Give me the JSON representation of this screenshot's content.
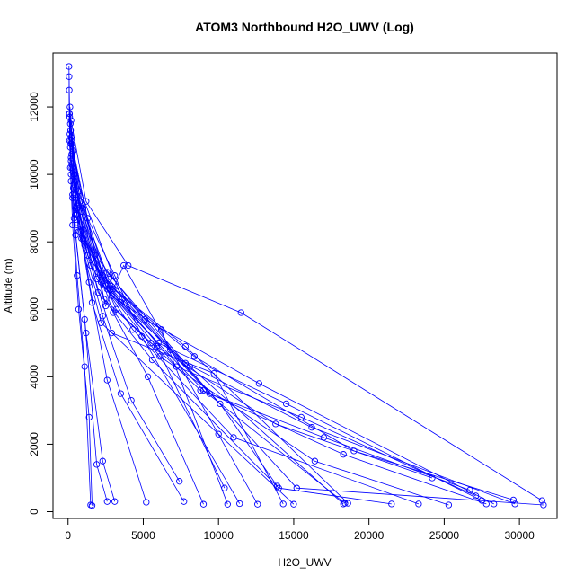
{
  "chart_data": {
    "type": "line",
    "title": "ATOM3 Northbound H2O_UWV (Log)",
    "xlabel": "H2O_UWV",
    "ylabel": "Altitude (m)",
    "xlim": [
      -1000,
      32500
    ],
    "ylim": [
      -200,
      13600
    ],
    "xticks": [
      0,
      5000,
      10000,
      15000,
      20000,
      25000,
      30000
    ],
    "yticks": [
      0,
      2000,
      4000,
      6000,
      8000,
      10000,
      12000
    ],
    "grid": false,
    "legend": "none",
    "marker": "open-circle",
    "series_color": "#0000ff",
    "series": [
      {
        "points": [
          [
            1600,
            180
          ],
          [
            1400,
            2800
          ],
          [
            700,
            6000
          ],
          [
            300,
            8500
          ],
          [
            150,
            10200
          ],
          [
            80,
            11800
          ],
          [
            60,
            13200
          ]
        ]
      },
      {
        "points": [
          [
            1500,
            200
          ],
          [
            1100,
            4300
          ],
          [
            600,
            7000
          ],
          [
            200,
            9800
          ],
          [
            100,
            11000
          ],
          [
            70,
            12900
          ]
        ]
      },
      {
        "points": [
          [
            2600,
            300
          ],
          [
            1900,
            1400
          ],
          [
            1100,
            5700
          ],
          [
            500,
            8200
          ],
          [
            150,
            10800
          ],
          [
            80,
            12500
          ]
        ]
      },
      {
        "points": [
          [
            3100,
            300
          ],
          [
            2300,
            1500
          ],
          [
            1200,
            5300
          ],
          [
            400,
            8700
          ],
          [
            120,
            11200
          ]
        ]
      },
      {
        "points": [
          [
            5200,
            280
          ],
          [
            2600,
            3900
          ],
          [
            1400,
            6800
          ],
          [
            500,
            9400
          ],
          [
            130,
            12000
          ]
        ]
      },
      {
        "points": [
          [
            7400,
            900
          ],
          [
            4200,
            3300
          ],
          [
            2300,
            5800
          ],
          [
            900,
            8100
          ],
          [
            200,
            10500
          ]
        ]
      },
      {
        "points": [
          [
            7700,
            300
          ],
          [
            3500,
            3500
          ],
          [
            1600,
            6200
          ],
          [
            600,
            8800
          ],
          [
            110,
            11700
          ]
        ]
      },
      {
        "points": [
          [
            9000,
            220
          ],
          [
            5300,
            4000
          ],
          [
            3000,
            5900
          ],
          [
            1100,
            8400
          ],
          [
            250,
            10300
          ]
        ]
      },
      {
        "points": [
          [
            10400,
            700
          ],
          [
            5900,
            4900
          ],
          [
            2600,
            6600
          ],
          [
            1000,
            9000
          ],
          [
            200,
            11100
          ]
        ]
      },
      {
        "points": [
          [
            10600,
            220
          ],
          [
            6200,
            5400
          ],
          [
            2900,
            6400
          ],
          [
            700,
            9500
          ],
          [
            100,
            11800
          ]
        ]
      },
      {
        "points": [
          [
            11400,
            240
          ],
          [
            4900,
            5200
          ],
          [
            3100,
            7000
          ],
          [
            1300,
            8700
          ],
          [
            180,
            10900
          ]
        ]
      },
      {
        "points": [
          [
            12600,
            220
          ],
          [
            3700,
            7300
          ],
          [
            2500,
            6100
          ],
          [
            900,
            8900
          ],
          [
            200,
            10000
          ]
        ]
      },
      {
        "points": [
          [
            14300,
            230
          ],
          [
            9700,
            4100
          ],
          [
            2900,
            5300
          ],
          [
            1100,
            7900
          ],
          [
            240,
            10600
          ]
        ]
      },
      {
        "points": [
          [
            13900,
            760
          ],
          [
            10100,
            3200
          ],
          [
            2700,
            6900
          ],
          [
            800,
            9200
          ],
          [
            150,
            11500
          ]
        ]
      },
      {
        "points": [
          [
            15000,
            220
          ],
          [
            10000,
            2300
          ],
          [
            2200,
            5600
          ],
          [
            700,
            8300
          ],
          [
            260,
            10200
          ]
        ]
      },
      {
        "points": [
          [
            18300,
            230
          ],
          [
            8100,
            4300
          ],
          [
            3500,
            6200
          ],
          [
            1300,
            7600
          ],
          [
            200,
            10400
          ]
        ]
      },
      {
        "points": [
          [
            18600,
            250
          ],
          [
            7800,
            4900
          ],
          [
            2800,
            6700
          ],
          [
            1000,
            8100
          ],
          [
            170,
            11300
          ]
        ]
      },
      {
        "points": [
          [
            18400,
            250
          ],
          [
            9000,
            3600
          ],
          [
            1900,
            6900
          ],
          [
            600,
            9000
          ],
          [
            200,
            11000
          ]
        ]
      },
      {
        "points": [
          [
            21500,
            230
          ],
          [
            14000,
            700
          ],
          [
            5600,
            4500
          ],
          [
            2000,
            6500
          ],
          [
            350,
            9600
          ]
        ]
      },
      {
        "points": [
          [
            23300,
            230
          ],
          [
            11000,
            2200
          ],
          [
            4300,
            5400
          ],
          [
            1500,
            7300
          ],
          [
            300,
            9300
          ]
        ]
      },
      {
        "points": [
          [
            25300,
            200
          ],
          [
            16400,
            1500
          ],
          [
            6100,
            4600
          ],
          [
            2200,
            6800
          ],
          [
            450,
            9800
          ]
        ]
      },
      {
        "points": [
          [
            24200,
            1000
          ],
          [
            13800,
            2600
          ],
          [
            5500,
            5000
          ],
          [
            2400,
            6300
          ],
          [
            350,
            10700
          ]
        ]
      },
      {
        "points": [
          [
            26700,
            640
          ],
          [
            17000,
            2200
          ],
          [
            8800,
            3600
          ],
          [
            3200,
            6000
          ],
          [
            500,
            8800
          ]
        ]
      },
      {
        "points": [
          [
            27100,
            470
          ],
          [
            15500,
            2800
          ],
          [
            7200,
            4300
          ],
          [
            2000,
            7100
          ],
          [
            300,
            9400
          ]
        ]
      },
      {
        "points": [
          [
            27500,
            330
          ],
          [
            14500,
            3200
          ],
          [
            6000,
            5000
          ],
          [
            2500,
            6700
          ],
          [
            600,
            8500
          ]
        ]
      },
      {
        "points": [
          [
            27800,
            230
          ],
          [
            18300,
            1700
          ],
          [
            9400,
            3500
          ],
          [
            3600,
            6300
          ],
          [
            400,
            10000
          ]
        ]
      },
      {
        "points": [
          [
            28300,
            230
          ],
          [
            12700,
            3800
          ],
          [
            5100,
            5700
          ],
          [
            1800,
            7600
          ],
          [
            250,
            10900
          ]
        ]
      },
      {
        "points": [
          [
            29600,
            350
          ],
          [
            19000,
            1800
          ],
          [
            8400,
            4600
          ],
          [
            3000,
            6600
          ],
          [
            800,
            8300
          ]
        ]
      },
      {
        "points": [
          [
            29700,
            230
          ],
          [
            16200,
            2500
          ],
          [
            7800,
            4400
          ],
          [
            2600,
            7100
          ],
          [
            500,
            9000
          ]
        ]
      },
      {
        "points": [
          [
            31500,
            330
          ],
          [
            11500,
            5900
          ],
          [
            4000,
            7300
          ],
          [
            1200,
            9200
          ],
          [
            200,
            11600
          ]
        ]
      },
      {
        "points": [
          [
            31600,
            200
          ],
          [
            15200,
            700
          ],
          [
            6800,
            4800
          ],
          [
            2300,
            7000
          ],
          [
            400,
            9700
          ]
        ]
      }
    ]
  }
}
